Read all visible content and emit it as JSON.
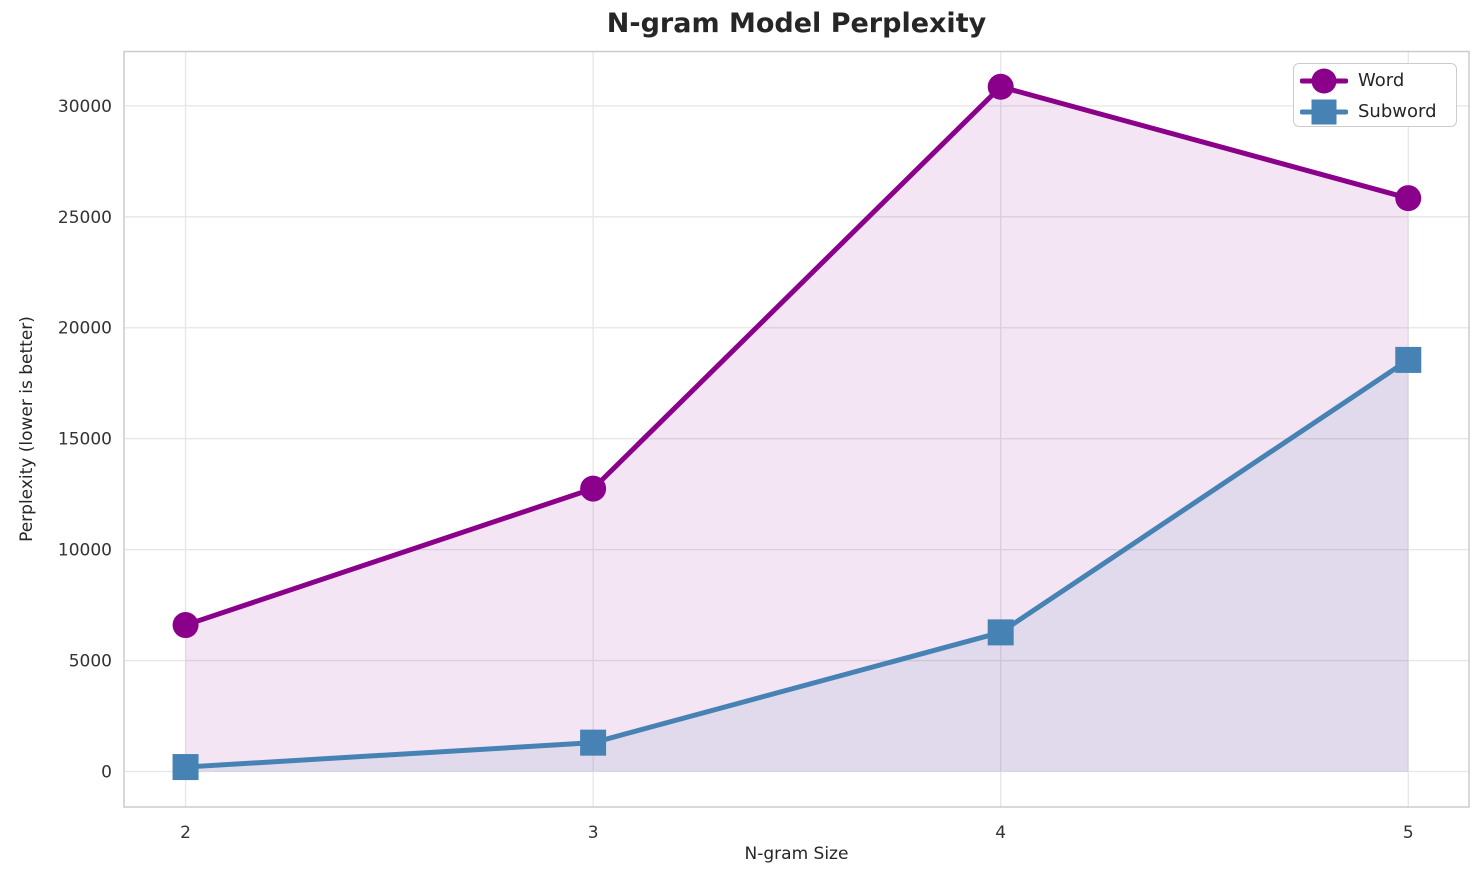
{
  "chart_data": {
    "type": "line",
    "title": "N-gram Model Perplexity",
    "xlabel": "N-gram Size",
    "ylabel": "Perplexity (lower is better)",
    "x": [
      2,
      3,
      4,
      5
    ],
    "series": [
      {
        "name": "Word",
        "values": [
          6600,
          12750,
          30860,
          25840
        ],
        "color": "#8B008B",
        "marker": "circle",
        "fill_alpha": 0.1
      },
      {
        "name": "Subword",
        "values": [
          200,
          1300,
          6270,
          18550
        ],
        "color": "#4682B4",
        "marker": "square",
        "fill_alpha": 0.1
      }
    ],
    "xticks": [
      "2",
      "3",
      "4",
      "5"
    ],
    "xtick_values": [
      2,
      3,
      4,
      5
    ],
    "yticks": [
      "0",
      "5000",
      "10000",
      "15000",
      "20000",
      "25000",
      "30000"
    ],
    "ytick_values": [
      0,
      5000,
      10000,
      15000,
      20000,
      25000,
      30000
    ],
    "xlim": [
      1.849,
      5.149
    ],
    "ylim": [
      -1600,
      32450
    ],
    "grid": true,
    "area_fill_baseline": 0,
    "line_width": 5,
    "marker_size": 26,
    "legend_position": "upper right"
  },
  "style_colors": {
    "grid": "#E6E6E6",
    "spine": "#CCCCCC",
    "text": "#262626",
    "tick_text": "#333333",
    "plot_background": "#FFFFFF"
  }
}
